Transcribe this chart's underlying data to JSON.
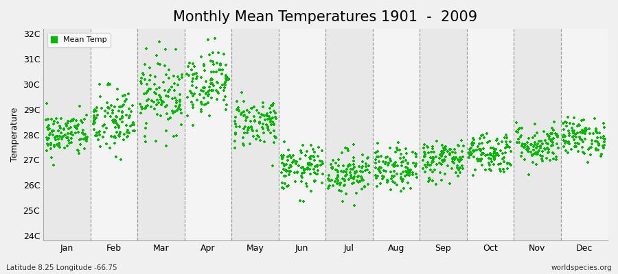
{
  "title": "Monthly Mean Temperatures 1901  -  2009",
  "ylabel": "Temperature",
  "xlabel_months": [
    "Jan",
    "Feb",
    "Mar",
    "Apr",
    "May",
    "Jun",
    "Jul",
    "Aug",
    "Sep",
    "Oct",
    "Nov",
    "Dec"
  ],
  "ylim": [
    23.8,
    32.2
  ],
  "yticks": [
    24,
    25,
    26,
    27,
    28,
    29,
    30,
    31,
    32
  ],
  "ytick_labels": [
    "24C",
    "25C",
    "26C",
    "27C",
    "28C",
    "29C",
    "30C",
    "31C",
    "32C"
  ],
  "dot_color": "#00BB00",
  "background_color": "#f0f0f0",
  "plot_bg_color": "#f0f0f0",
  "band_color_odd": "#e8e8e8",
  "band_color_even": "#f4f4f4",
  "legend_label": "Mean Temp",
  "footer_left": "Latitude 8.25 Longitude -66.75",
  "footer_right": "worldspecies.org",
  "title_fontsize": 15,
  "axis_label_fontsize": 9,
  "tick_fontsize": 9,
  "n_years": 109,
  "monthly_means": [
    28.0,
    28.5,
    29.6,
    30.1,
    28.5,
    26.65,
    26.5,
    26.6,
    27.0,
    27.3,
    27.6,
    27.9
  ],
  "monthly_stds": [
    0.45,
    0.7,
    0.75,
    0.65,
    0.5,
    0.45,
    0.45,
    0.42,
    0.42,
    0.42,
    0.42,
    0.38
  ],
  "seed": 42
}
